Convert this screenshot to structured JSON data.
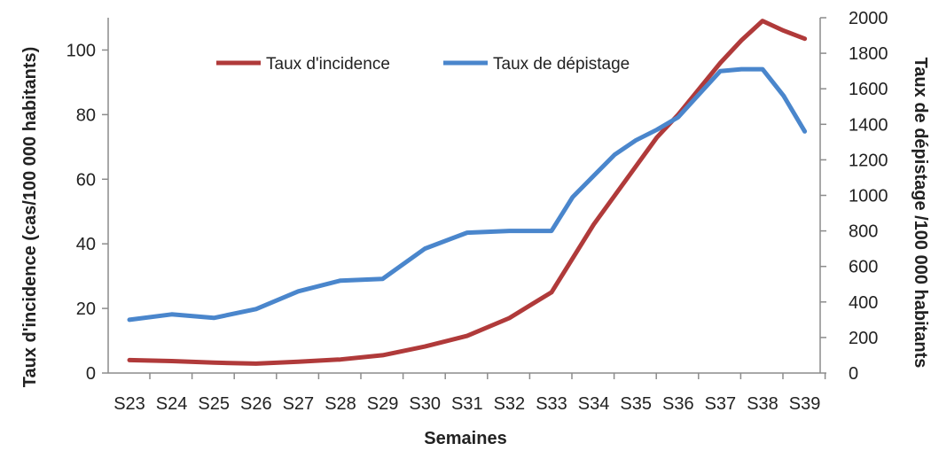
{
  "chart_data": {
    "type": "line",
    "title": "",
    "xlabel": "Semaines",
    "ylabel_left": "Taux d'incidence (cas/100 000 habitants)",
    "ylabel_right": "Taux de dépistage /100 000 habitants",
    "categories": [
      "S23",
      "S24",
      "S25",
      "S26",
      "S27",
      "S28",
      "S29",
      "S30",
      "S31",
      "S32",
      "S33",
      "S34",
      "S35",
      "S36",
      "S37",
      "S38",
      "S39"
    ],
    "ylim_left": [
      0,
      110
    ],
    "yticks_left": [
      0,
      20,
      40,
      60,
      80,
      100
    ],
    "ylim_right": [
      0,
      2000
    ],
    "yticks_right": [
      0,
      200,
      400,
      600,
      800,
      1000,
      1200,
      1400,
      1600,
      1800,
      2000
    ],
    "grid": false,
    "legend_position": "top-center",
    "series": [
      {
        "name": "Taux d'incidence",
        "axis": "left",
        "color": "#b03a3a",
        "x": [
          0,
          1,
          2,
          3,
          4,
          5,
          6,
          7,
          8,
          9,
          9.5,
          10,
          11,
          12,
          12.5,
          13,
          13.5,
          14,
          14.5,
          15,
          15.5,
          16
        ],
        "values": [
          4.0,
          3.7,
          3.2,
          2.9,
          3.5,
          4.2,
          5.5,
          8.2,
          11.5,
          17.0,
          21.0,
          25.0,
          46.0,
          64.0,
          73.0,
          80.0,
          88.0,
          96.0,
          103.0,
          109.0,
          106.0,
          103.5
        ]
      },
      {
        "name": "Taux de dépistage",
        "axis": "right",
        "color": "#4a86cc",
        "x": [
          0,
          1,
          2,
          3,
          4,
          5,
          6,
          7,
          8,
          9,
          10,
          10.5,
          11,
          11.5,
          12,
          12.5,
          13,
          13.5,
          14,
          14.5,
          15,
          15.5,
          16
        ],
        "values": [
          300,
          330,
          310,
          360,
          460,
          520,
          530,
          700,
          790,
          800,
          800,
          990,
          1110,
          1230,
          1310,
          1370,
          1440,
          1570,
          1700,
          1710,
          1710,
          1560,
          1360
        ]
      }
    ]
  }
}
